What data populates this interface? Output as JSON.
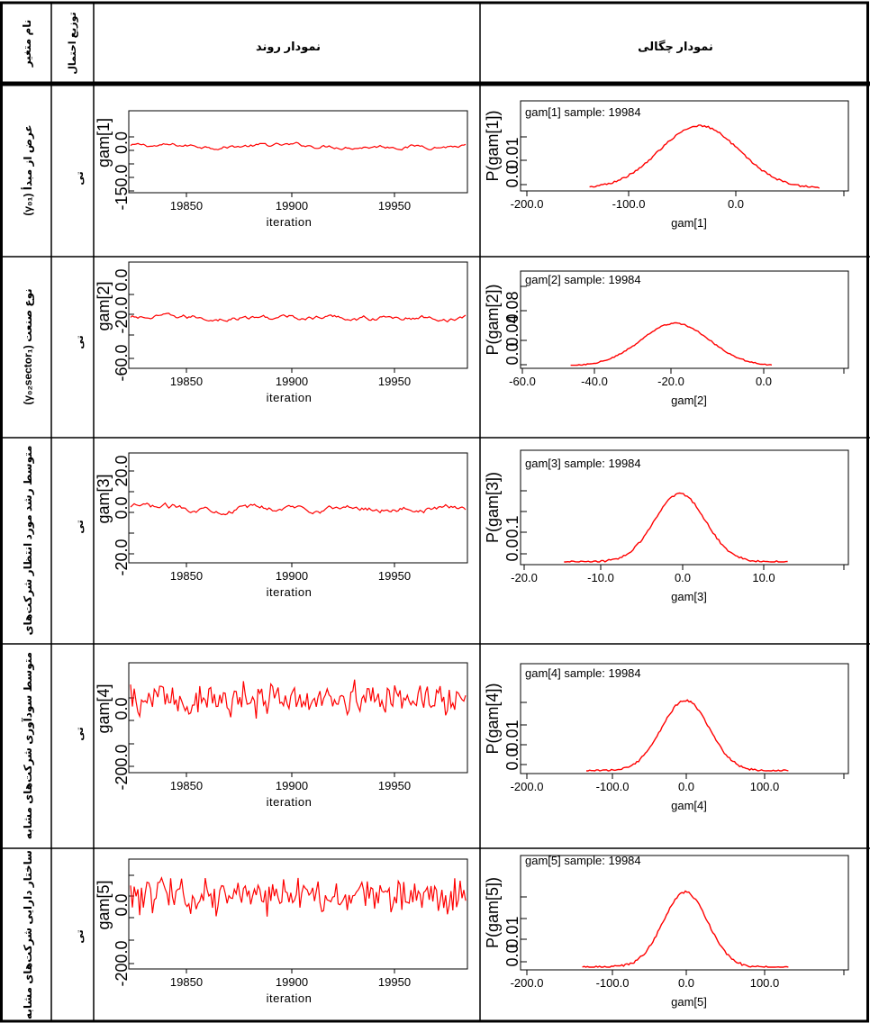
{
  "header": {
    "col_var": "نام متغیر",
    "col_dist": "توزیع احتمال",
    "col_trend": "نمودار روند",
    "col_density": "نمودار چگالی"
  },
  "rows": [
    {
      "var_label": "عرض از مبدأ (γ₀₁)",
      "dist_label": "تی",
      "trend": {
        "ylabel": "gam[1]",
        "yticks": [
          "-150.0",
          "0.0"
        ],
        "xticks": [
          "19850",
          "19900",
          "19950"
        ],
        "xlabel": "iteration"
      },
      "density": {
        "title": "gam[1] sample: 19984",
        "ylabel": "P(gam[1])",
        "yticks": [
          "0.0",
          "0.01"
        ],
        "xticks": [
          "-200.0",
          "-100.0",
          "0.0"
        ],
        "xlabel": "gam[1]"
      }
    },
    {
      "var_label": "نوع صنعت (γ₀₂sector₁)",
      "dist_label": "تی",
      "trend": {
        "ylabel": "gam[2]",
        "yticks": [
          "-60.0",
          "-20.0",
          "0.0"
        ],
        "xticks": [
          "19850",
          "19900",
          "19950"
        ],
        "xlabel": "iteration"
      },
      "density": {
        "title": "gam[2] sample: 19984",
        "ylabel": "P(gam[2])",
        "yticks": [
          "0.0",
          "0.04",
          "0.08"
        ],
        "xticks": [
          "-60.0",
          "-40.0",
          "-20.0",
          "0.0"
        ],
        "xlabel": "gam[2]"
      }
    },
    {
      "var_label": "متوسط رشد مورد انتظار شرکت‌های",
      "dist_label": "تی",
      "trend": {
        "ylabel": "gam[3]",
        "yticks": [
          "-20.0",
          "0.0",
          "20.0"
        ],
        "xticks": [
          "19850",
          "19900",
          "19950"
        ],
        "xlabel": "iteration"
      },
      "density": {
        "title": "gam[3] sample: 19984",
        "ylabel": "P(gam[3])",
        "yticks": [
          "0.0",
          "0.1"
        ],
        "xticks": [
          "-20.0",
          "-10.0",
          "0.0",
          "10.0"
        ],
        "xlabel": "gam[3]"
      }
    },
    {
      "var_label": "متوسط سودآوری شرکت‌های مشابه",
      "dist_label": "تی",
      "trend": {
        "ylabel": "gam[4]",
        "yticks": [
          "-200.0",
          "0.0"
        ],
        "xticks": [
          "19850",
          "19900",
          "19950"
        ],
        "xlabel": "iteration"
      },
      "density": {
        "title": "gam[4] sample: 19984",
        "ylabel": "P(gam[4])",
        "yticks": [
          "0.0",
          "0.01"
        ],
        "xticks": [
          "-200.0",
          "-100.0",
          "0.0",
          "100.0"
        ],
        "xlabel": "gam[4]"
      }
    },
    {
      "var_label": "ساختار دارایی شرکت‌های مشابه",
      "dist_label": "تی",
      "trend": {
        "ylabel": "gam[5]",
        "yticks": [
          "-200.0",
          "0.0"
        ],
        "xticks": [
          "19850",
          "19900",
          "19950"
        ],
        "xlabel": "iteration"
      },
      "density": {
        "title": "gam[5] sample: 19984",
        "ylabel": "P(gam[5])",
        "yticks": [
          "0.0",
          "0.01"
        ],
        "xticks": [
          "-200.0",
          "-100.0",
          "0.0",
          "100.0"
        ],
        "xlabel": "gam[5]"
      }
    }
  ],
  "chart_data": [
    {
      "type": "line",
      "title": "",
      "xlabel": "iteration",
      "ylabel": "gam[1]",
      "x_range": [
        19814,
        19998
      ],
      "ylim": [
        -150,
        60
      ],
      "trace_center": -30,
      "trace_noise": 14,
      "color": "#ff0000"
    },
    {
      "type": "line",
      "title": "gam[1] sample: 19984",
      "xlabel": "gam[1]",
      "ylabel": "P(gam[1])",
      "x_range": [
        -140,
        80
      ],
      "ylim": [
        0,
        0.02
      ],
      "density_mean": -35,
      "density_sd": 38,
      "density_peak": 0.0148,
      "color": "#ff0000"
    },
    {
      "type": "line",
      "title": "",
      "xlabel": "iteration",
      "ylabel": "gam[2]",
      "x_range": [
        19814,
        19998
      ],
      "ylim": [
        -60,
        20
      ],
      "trace_center": -22,
      "trace_noise": 5,
      "color": "#ff0000"
    },
    {
      "type": "line",
      "title": "gam[2] sample: 19984",
      "xlabel": "gam[2]",
      "ylabel": "P(gam[2])",
      "x_range": [
        -48,
        2
      ],
      "ylim": [
        0,
        0.1
      ],
      "density_mean": -22,
      "density_sd": 8.5,
      "density_peak": 0.046,
      "color": "#ff0000"
    },
    {
      "type": "line",
      "title": "",
      "xlabel": "iteration",
      "ylabel": "gam[3]",
      "x_range": [
        19814,
        19998
      ],
      "ylim": [
        -20,
        20
      ],
      "trace_center": 0,
      "trace_noise": 3,
      "color": "#ff0000"
    },
    {
      "type": "line",
      "title": "gam[3] sample: 19984",
      "xlabel": "gam[3]",
      "ylabel": "P(gam[3])",
      "x_range": [
        -15,
        13
      ],
      "ylim": [
        0,
        0.2
      ],
      "density_mean": -0.5,
      "density_sd": 3.2,
      "density_peak": 0.125,
      "color": "#ff0000"
    },
    {
      "type": "line",
      "title": "",
      "xlabel": "iteration",
      "ylabel": "gam[4]",
      "x_range": [
        19814,
        19998
      ],
      "ylim": [
        -200,
        100
      ],
      "trace_center": 0,
      "trace_noise": 30,
      "color": "#ff0000"
    },
    {
      "type": "line",
      "title": "gam[4] sample: 19984",
      "xlabel": "gam[4]",
      "ylabel": "P(gam[4])",
      "x_range": [
        -125,
        130
      ],
      "ylim": [
        0,
        0.02
      ],
      "density_mean": 0,
      "density_sd": 30,
      "density_peak": 0.0135,
      "color": "#ff0000"
    },
    {
      "type": "line",
      "title": "",
      "xlabel": "iteration",
      "ylabel": "gam[5]",
      "x_range": [
        19814,
        19998
      ],
      "ylim": [
        -200,
        100
      ],
      "trace_center": 0,
      "trace_noise": 30,
      "color": "#ff0000"
    },
    {
      "type": "line",
      "title": "gam[5] sample: 19984",
      "xlabel": "gam[5]",
      "ylabel": "P(gam[5])",
      "x_range": [
        -130,
        130
      ],
      "ylim": [
        0,
        0.02
      ],
      "density_mean": 0,
      "density_sd": 28,
      "density_peak": 0.0138,
      "color": "#ff0000"
    }
  ]
}
